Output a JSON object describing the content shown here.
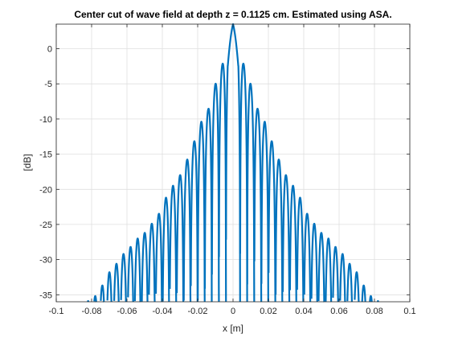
{
  "chart_data": {
    "type": "line",
    "title": "Center cut of wave field at depth z = 0.1125 cm. Estimated using ASA.",
    "xlabel": "x [m]",
    "ylabel": "[dB]",
    "xlim": [
      -0.1,
      0.1
    ],
    "ylim": [
      -36,
      3.5
    ],
    "xticks": [
      -0.1,
      -0.08,
      -0.06,
      -0.04,
      -0.02,
      0,
      0.02,
      0.04,
      0.06,
      0.08,
      0.1
    ],
    "xtick_labels": [
      "-0.1",
      "-0.08",
      "-0.06",
      "-0.04",
      "-0.02",
      "0",
      "0.02",
      "0.04",
      "0.06",
      "0.08",
      "0.1"
    ],
    "yticks": [
      -35,
      -30,
      -25,
      -20,
      -15,
      -10,
      -5,
      0
    ],
    "ytick_labels": [
      "-35",
      "-30",
      "-25",
      "-20",
      "-15",
      "-10",
      "-5",
      "0"
    ],
    "grid": true,
    "line_color": "#0072BD",
    "peak_db": 3.5,
    "lobe_spacing_m": 0.004,
    "lobe_peaks": [
      {
        "x": 0.0,
        "y": 3.5
      },
      {
        "x": 0.006,
        "y": -2.2
      },
      {
        "x": 0.0095,
        "y": -4.6
      },
      {
        "x": 0.014,
        "y": -8.6
      },
      {
        "x": 0.018,
        "y": -10.4
      },
      {
        "x": 0.022,
        "y": -13.2
      },
      {
        "x": 0.026,
        "y": -15.8
      },
      {
        "x": 0.03,
        "y": -18.0
      },
      {
        "x": 0.034,
        "y": -19.5
      },
      {
        "x": 0.038,
        "y": -21.2
      },
      {
        "x": 0.042,
        "y": -23.5
      },
      {
        "x": 0.046,
        "y": -24.9
      },
      {
        "x": 0.05,
        "y": -26.2
      },
      {
        "x": 0.054,
        "y": -27.0
      },
      {
        "x": 0.058,
        "y": -28.2
      },
      {
        "x": 0.062,
        "y": -29.2
      },
      {
        "x": 0.066,
        "y": -30.6
      },
      {
        "x": 0.07,
        "y": -31.8
      },
      {
        "x": 0.074,
        "y": -33.7
      },
      {
        "x": 0.078,
        "y": -35.2
      },
      {
        "x": 0.082,
        "y": -35.9
      }
    ]
  }
}
